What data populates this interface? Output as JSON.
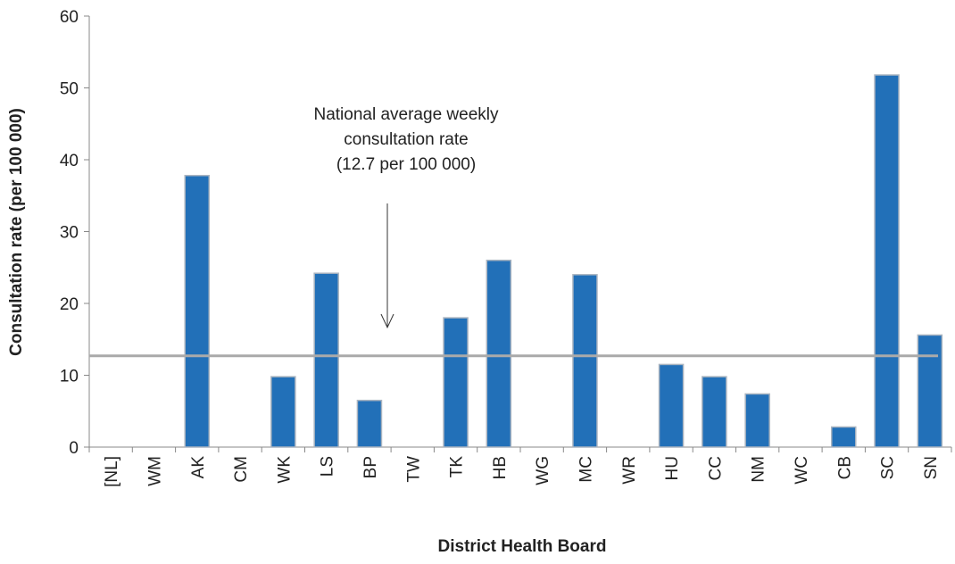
{
  "chart_data": {
    "type": "bar",
    "x_label": "District Health Board",
    "y_label": "Consultation rate (per 100 000)",
    "categories": [
      "[NL]",
      "WM",
      "AK",
      "CM",
      "WK",
      "LS",
      "BP",
      "TW",
      "TK",
      "HB",
      "WG",
      "MC",
      "WR",
      "HU",
      "CC",
      "NM",
      "WC",
      "CB",
      "SC",
      "SN"
    ],
    "values": [
      0,
      0,
      37.8,
      0,
      9.8,
      24.2,
      6.5,
      0,
      18,
      26,
      0,
      24,
      0,
      11.5,
      9.8,
      7.4,
      0,
      2.8,
      51.8,
      15.6
    ],
    "color": "#2270b8",
    "reference_line": {
      "value": 12.7,
      "color": "#aaaaaa"
    },
    "annotation": [
      "National average weekly",
      "consultation rate",
      "(12.7 per 100 000)"
    ],
    "ylim": [
      0,
      60
    ],
    "yticks": [
      0,
      10,
      20,
      30,
      40,
      50,
      60
    ],
    "grid": false
  }
}
